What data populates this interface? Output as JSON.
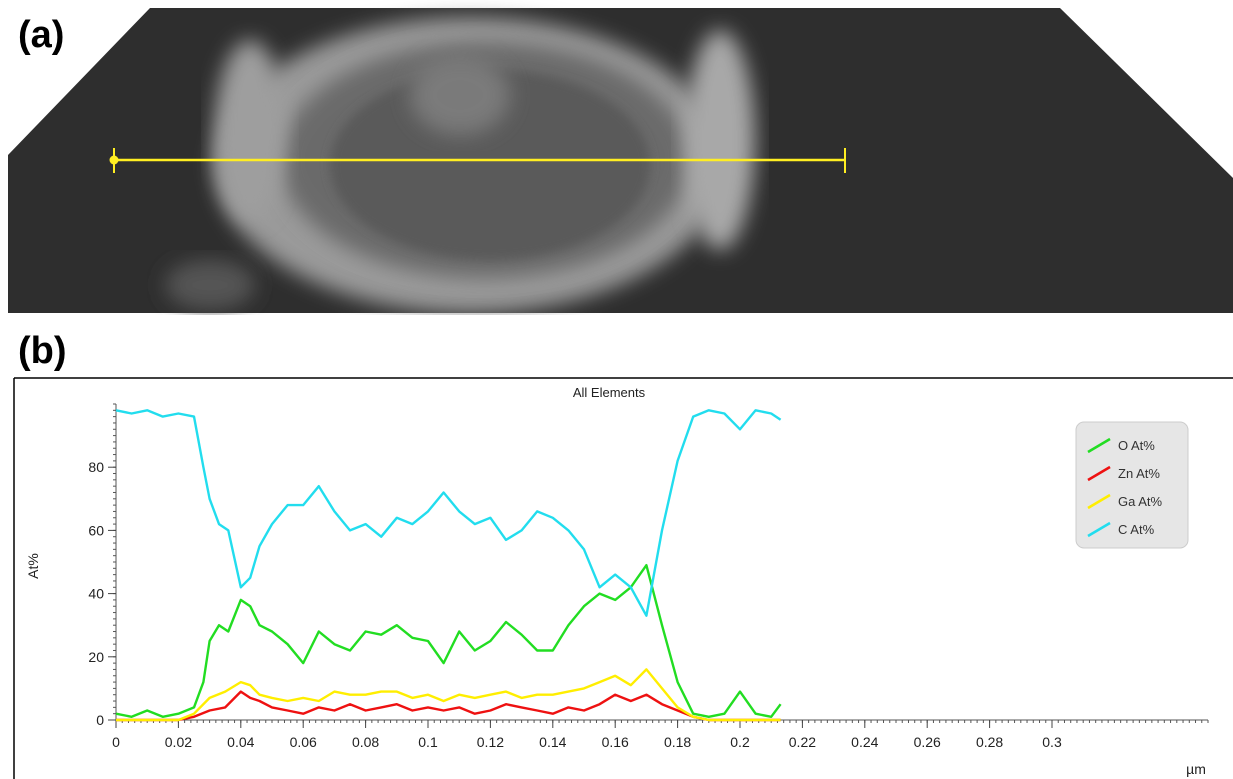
{
  "panels": {
    "a_label": "(a)",
    "b_label": "(b)"
  },
  "colors": {
    "O": "#22dd22",
    "Zn": "#ee1111",
    "Ga": "#ffee00",
    "C": "#22ddee",
    "scan_line": "#ffee22",
    "sem_background": "#2e2e2e"
  },
  "chart_data": {
    "type": "line",
    "title": "All Elements",
    "xlabel": "µm",
    "ylabel": "At%",
    "xlim": [
      0,
      0.35
    ],
    "ylim": [
      0,
      100
    ],
    "xticks": [
      0,
      0.02,
      0.04,
      0.06,
      0.08,
      0.1,
      0.12,
      0.14,
      0.16,
      0.18,
      0.2,
      0.22,
      0.24,
      0.26,
      0.28,
      0.3
    ],
    "xtick_labels": [
      "0",
      "0.02",
      "0.04",
      "0.06",
      "0.08",
      "0.1",
      "0.12",
      "0.14",
      "0.16",
      "0.18",
      "0.2",
      "0.22",
      "0.24",
      "0.26",
      "0.28",
      "0.3"
    ],
    "yticks": [
      0,
      20,
      40,
      60,
      80
    ],
    "ytick_labels": [
      "0",
      "20",
      "40",
      "60",
      "80"
    ],
    "legend_position": "top-right",
    "series": [
      {
        "name": "O At%",
        "color": "#22dd22",
        "x": [
          0,
          0.005,
          0.01,
          0.015,
          0.02,
          0.025,
          0.028,
          0.03,
          0.033,
          0.036,
          0.04,
          0.043,
          0.046,
          0.05,
          0.055,
          0.06,
          0.065,
          0.07,
          0.075,
          0.08,
          0.085,
          0.09,
          0.095,
          0.1,
          0.105,
          0.11,
          0.115,
          0.12,
          0.125,
          0.13,
          0.135,
          0.14,
          0.145,
          0.15,
          0.155,
          0.16,
          0.165,
          0.17,
          0.175,
          0.18,
          0.185,
          0.19,
          0.195,
          0.2,
          0.205,
          0.21,
          0.213
        ],
        "y": [
          2,
          1,
          3,
          1,
          2,
          4,
          12,
          25,
          30,
          28,
          38,
          36,
          30,
          28,
          24,
          18,
          28,
          24,
          22,
          28,
          27,
          30,
          26,
          25,
          18,
          28,
          22,
          25,
          31,
          27,
          22,
          22,
          30,
          36,
          40,
          38,
          42,
          49,
          30,
          12,
          2,
          1,
          2,
          9,
          2,
          1,
          5
        ]
      },
      {
        "name": "Zn At%",
        "color": "#ee1111",
        "x": [
          0,
          0.01,
          0.02,
          0.025,
          0.03,
          0.035,
          0.04,
          0.043,
          0.046,
          0.05,
          0.055,
          0.06,
          0.065,
          0.07,
          0.075,
          0.08,
          0.085,
          0.09,
          0.095,
          0.1,
          0.105,
          0.11,
          0.115,
          0.12,
          0.125,
          0.13,
          0.135,
          0.14,
          0.145,
          0.15,
          0.155,
          0.16,
          0.165,
          0.17,
          0.175,
          0.18,
          0.185,
          0.19,
          0.2,
          0.21,
          0.213
        ],
        "y": [
          0,
          0,
          0,
          1,
          3,
          4,
          9,
          7,
          6,
          4,
          3,
          2,
          4,
          3,
          5,
          3,
          4,
          5,
          3,
          4,
          3,
          4,
          2,
          3,
          5,
          4,
          3,
          2,
          4,
          3,
          5,
          8,
          6,
          8,
          5,
          3,
          1,
          0,
          0,
          0,
          0
        ]
      },
      {
        "name": "Ga At%",
        "color": "#ffee00",
        "x": [
          0,
          0.01,
          0.02,
          0.025,
          0.03,
          0.035,
          0.04,
          0.043,
          0.046,
          0.05,
          0.055,
          0.06,
          0.065,
          0.07,
          0.075,
          0.08,
          0.085,
          0.09,
          0.095,
          0.1,
          0.105,
          0.11,
          0.115,
          0.12,
          0.125,
          0.13,
          0.135,
          0.14,
          0.145,
          0.15,
          0.155,
          0.16,
          0.165,
          0.17,
          0.175,
          0.18,
          0.185,
          0.19,
          0.2,
          0.21,
          0.213
        ],
        "y": [
          0,
          0,
          0,
          2,
          7,
          9,
          12,
          11,
          8,
          7,
          6,
          7,
          6,
          9,
          8,
          8,
          9,
          9,
          7,
          8,
          6,
          8,
          7,
          8,
          9,
          7,
          8,
          8,
          9,
          10,
          12,
          14,
          11,
          16,
          10,
          4,
          1,
          0,
          0,
          0,
          0
        ]
      },
      {
        "name": "C At%",
        "color": "#22ddee",
        "x": [
          0,
          0.005,
          0.01,
          0.015,
          0.02,
          0.025,
          0.028,
          0.03,
          0.033,
          0.036,
          0.04,
          0.043,
          0.046,
          0.05,
          0.055,
          0.06,
          0.065,
          0.07,
          0.075,
          0.08,
          0.085,
          0.09,
          0.095,
          0.1,
          0.105,
          0.11,
          0.115,
          0.12,
          0.125,
          0.13,
          0.135,
          0.14,
          0.145,
          0.15,
          0.155,
          0.16,
          0.165,
          0.17,
          0.175,
          0.18,
          0.185,
          0.19,
          0.195,
          0.2,
          0.205,
          0.21,
          0.213
        ],
        "y": [
          98,
          97,
          98,
          96,
          97,
          96,
          80,
          70,
          62,
          60,
          42,
          45,
          55,
          62,
          68,
          68,
          74,
          66,
          60,
          62,
          58,
          64,
          62,
          66,
          72,
          66,
          62,
          64,
          57,
          60,
          66,
          64,
          60,
          54,
          42,
          46,
          42,
          33,
          60,
          82,
          96,
          98,
          97,
          92,
          98,
          97,
          95
        ]
      }
    ]
  }
}
